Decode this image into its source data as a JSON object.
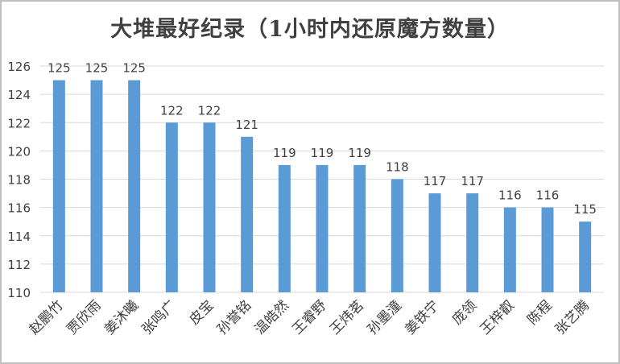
{
  "chart_data": {
    "type": "bar",
    "title": "大堆最好纪录（1小时内还原魔方数量）",
    "categories": [
      "赵鹏竹",
      "贾欣雨",
      "姜沐曦",
      "张鸣广",
      "皮宝",
      "孙誉铭",
      "温皓然",
      "王睿野",
      "王炜茗",
      "孙墨潼",
      "姜铁宁",
      "庞领",
      "王梓叡",
      "陈程",
      "张艺腾"
    ],
    "values": [
      125,
      125,
      125,
      122,
      122,
      121,
      119,
      119,
      119,
      118,
      117,
      117,
      116,
      116,
      115
    ],
    "xlabel": "",
    "ylabel": "",
    "ylim": [
      110,
      126
    ],
    "yticks": [
      110,
      112,
      114,
      116,
      118,
      120,
      122,
      124,
      126
    ],
    "grid": true,
    "bar_color": "#5b9bd5",
    "grid_color": "#d9d9d9",
    "text_color": "#404040"
  }
}
